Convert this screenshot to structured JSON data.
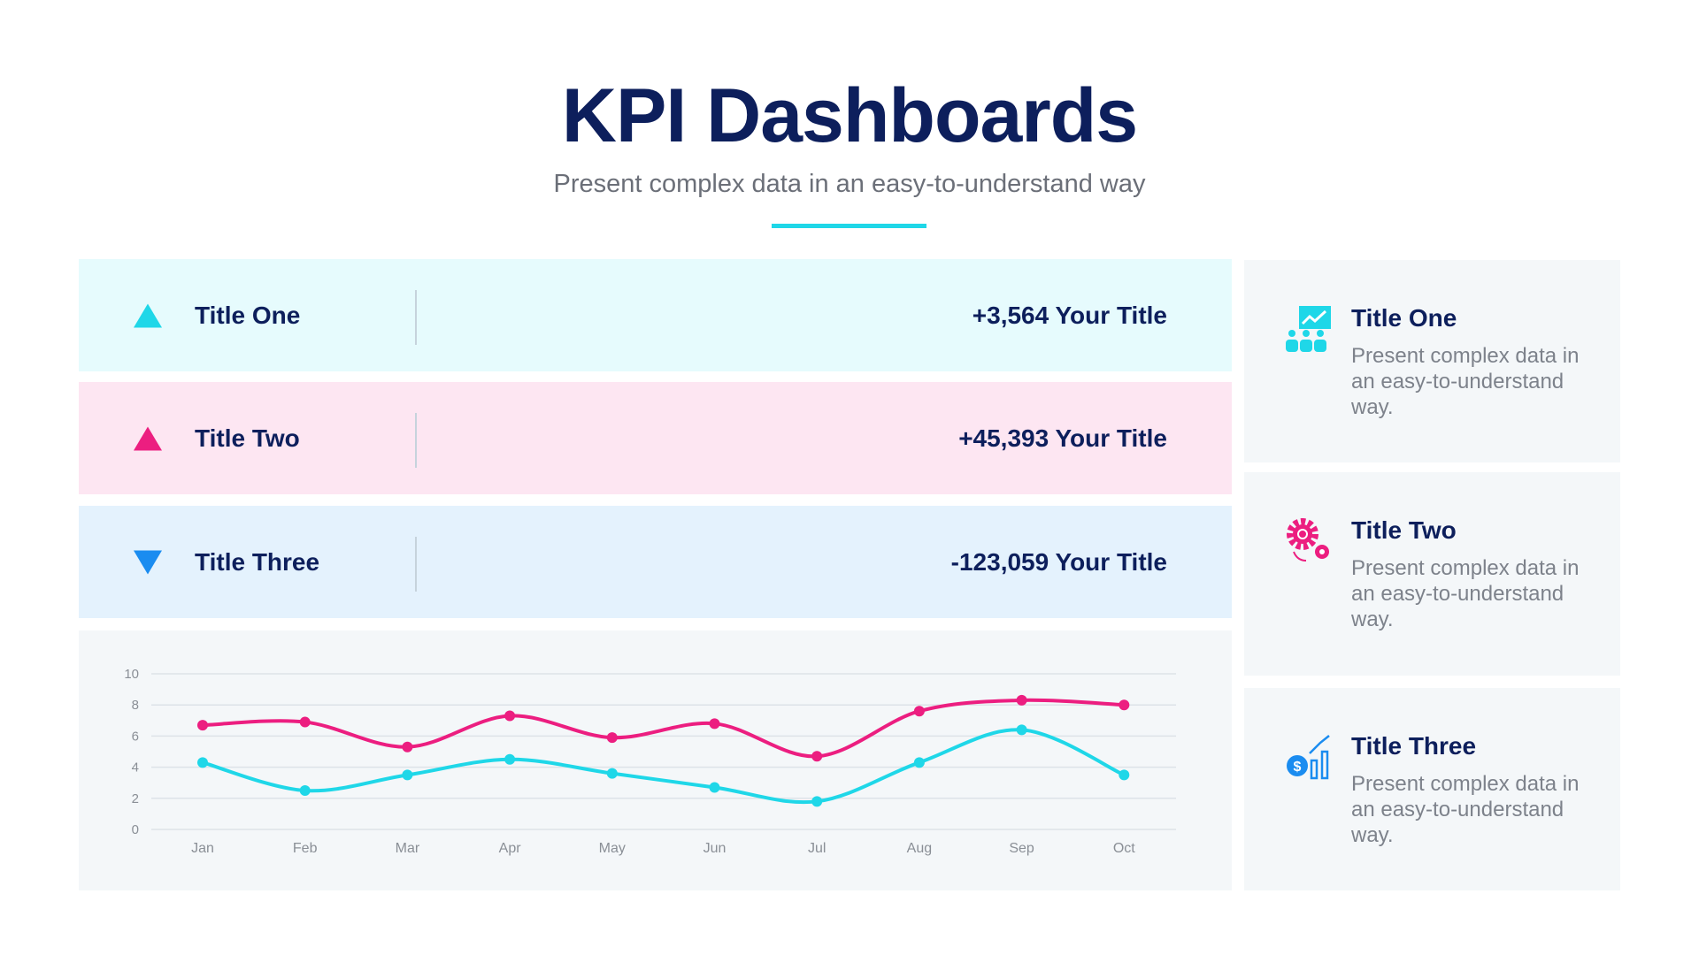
{
  "header": {
    "title": "KPI Dashboards",
    "subtitle": "Present complex data in an easy-to-understand way",
    "accent": "#1fd7e8"
  },
  "kpis": [
    {
      "title": "Title One",
      "value": "+3,564 Your Title",
      "trend": "up",
      "icon": "triangle-up-icon",
      "color": "#1fd7e8",
      "bg": "#e6fbfd"
    },
    {
      "title": "Title Two",
      "value": "+45,393 Your Title",
      "trend": "up",
      "icon": "triangle-up-icon",
      "color": "#ec1e80",
      "bg": "#fde6f2"
    },
    {
      "title": "Title Three",
      "value": "-123,059 Your Title",
      "trend": "down",
      "icon": "triangle-down-icon",
      "color": "#1a8cf0",
      "bg": "#e4f2fd"
    }
  ],
  "cards": [
    {
      "title": "Title One",
      "desc": "Present complex data in an easy-to-understand way.",
      "icon": "team-growth-icon",
      "color": "#1fd7e8"
    },
    {
      "title": "Title Two",
      "desc": "Present complex data in an easy-to-understand way.",
      "icon": "gears-icon",
      "color": "#ec1e80"
    },
    {
      "title": "Title Three",
      "desc": "Present complex data in an easy-to-understand way.",
      "icon": "dollar-chart-icon",
      "color": "#1a8cf0"
    }
  ],
  "chart_data": {
    "type": "line",
    "categories": [
      "Jan",
      "Feb",
      "Mar",
      "Apr",
      "May",
      "Jun",
      "Jul",
      "Aug",
      "Sep",
      "Oct"
    ],
    "series": [
      {
        "values": [
          6.7,
          6.9,
          5.3,
          7.3,
          5.9,
          6.8,
          4.7,
          7.6,
          8.3,
          8.0
        ],
        "color": "#ec1e80"
      },
      {
        "values": [
          4.3,
          2.5,
          3.5,
          4.5,
          3.6,
          2.7,
          1.8,
          4.3,
          6.4,
          3.5
        ],
        "color": "#1fd7e8"
      }
    ],
    "yticks": [
      "0",
      "2",
      "4",
      "6",
      "8",
      "10"
    ],
    "ylim": [
      0,
      10
    ],
    "grid": true,
    "smooth": true
  }
}
